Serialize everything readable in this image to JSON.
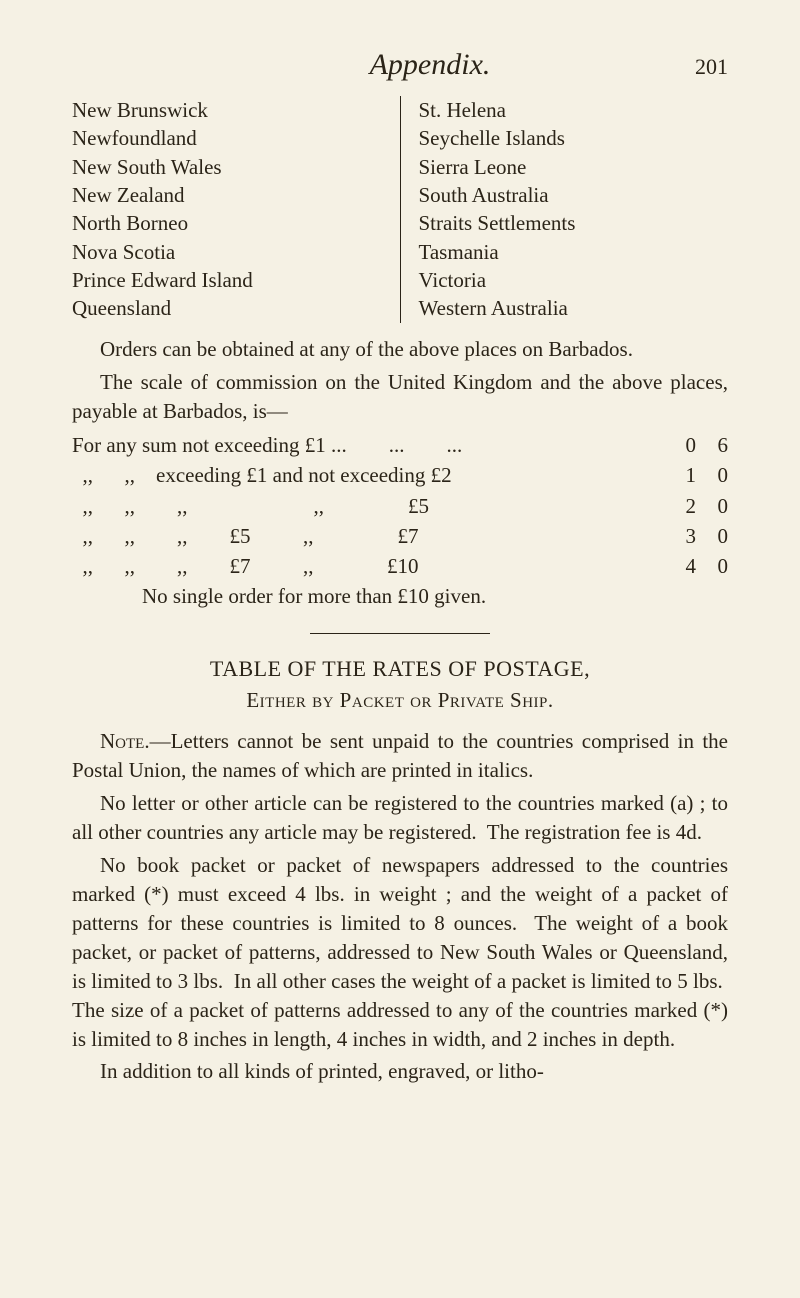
{
  "header": {
    "title": "Appendix.",
    "page_number": "201"
  },
  "places": {
    "left": [
      "New Brunswick",
      "Newfoundland",
      "New South Wales",
      "New Zealand",
      "North Borneo",
      "Nova Scotia",
      "Prince Edward Island",
      "Queensland"
    ],
    "right": [
      "St. Helena",
      "Seychelle Islands",
      "Sierra Leone",
      "South Australia",
      "Straits Settlements",
      "Tasmania",
      "Victoria",
      "Western Australia"
    ]
  },
  "orders_para": "Orders can be obtained at any of the above places on Barbados.",
  "scale_intro": "The scale of commission on the United Kingdom and the above places, payable at Barbados, is—",
  "commission": {
    "rows": [
      {
        "text": "For any sum not exceeding £1 ...        ...        ...",
        "s": "0",
        "d": "6"
      },
      {
        "text": "  ,,      ,,    exceeding £1 and not exceeding £2",
        "s": "1",
        "d": "0"
      },
      {
        "text": "  ,,      ,,        ,,                        ,,                £5",
        "s": "2",
        "d": "0"
      },
      {
        "text": "  ,,      ,,        ,,        £5          ,,                £7",
        "s": "3",
        "d": "0"
      },
      {
        "text": "  ,,      ,,        ,,        £7          ,,              £10",
        "s": "4",
        "d": "0"
      }
    ],
    "footer": "No single order for more than £10 given."
  },
  "section": {
    "title": "TABLE OF THE RATES OF POSTAGE,",
    "subtitle": "Either by Packet or Private Ship."
  },
  "note_label": "Note.",
  "note_body": "—Letters cannot be sent unpaid to the countries comprised in the Postal Union, the names of which are printed in italics.",
  "para2": "No letter or other article can be registered to the countries marked (a) ; to all other countries any article may be registered.  The registration fee is 4d.",
  "para3": "No book packet or packet of newspapers addressed to the countries marked (*) must exceed 4 lbs. in weight ; and the weight of a packet of patterns for these countries is limited to 8 ounces.  The weight of a book packet, or packet of patterns, addressed to New South Wales or Queensland, is limited to 3 lbs.  In all other cases the weight of a packet is limited to 5 lbs.  The size of a packet of patterns addressed to any of the countries marked (*) is limited to 8 inches in length, 4 inches in width, and 2 inches in depth.",
  "para4": "In addition to all kinds of printed, engraved, or litho-"
}
